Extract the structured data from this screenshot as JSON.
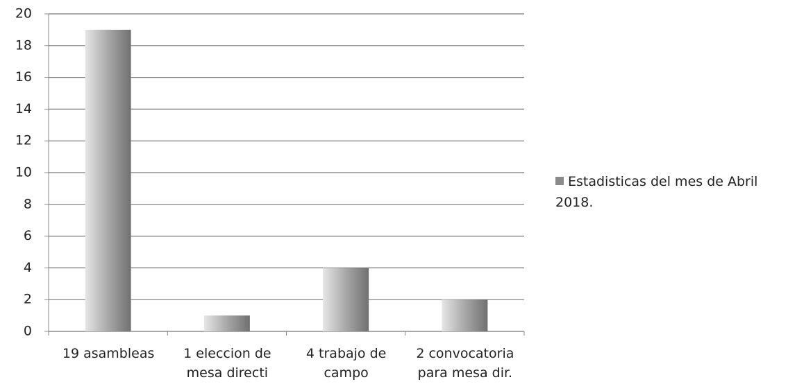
{
  "chart_data": {
    "type": "bar",
    "categories": [
      "19 asambleas",
      "1 eleccion de mesa directi",
      "4 trabajo de campo",
      "2 convocatoria para mesa dir."
    ],
    "series": [
      {
        "name": "Estadisticas del mes de Abril 2018.",
        "color": "#8a8a8a",
        "values": [
          19,
          1,
          4,
          2
        ]
      }
    ],
    "ylim": [
      0,
      20
    ],
    "yticks": [
      0,
      2,
      4,
      6,
      8,
      10,
      12,
      14,
      16,
      18,
      20
    ],
    "grid": true,
    "legend": "right"
  }
}
